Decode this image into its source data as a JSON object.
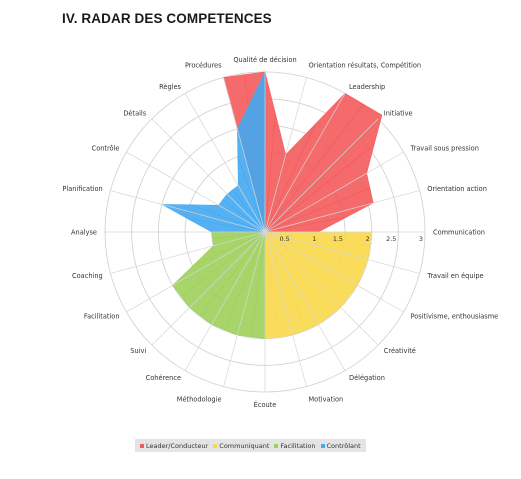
{
  "page": {
    "title": "IV. RADAR DES COMPETENCES"
  },
  "chart_data": {
    "type": "radar",
    "title": "",
    "categories": [
      "Qualité de décision",
      "Orientation résultats, Compétition",
      "Leadership",
      "Initiative",
      "Travail sous pression",
      "Orientation action",
      "Communication",
      "Travail en équipe",
      "Positivisme, enthousiasme",
      "Créativité",
      "Délégation",
      "Motivation",
      "Écoute",
      "Méthodologie",
      "Cohérence",
      "Suivi",
      "Facilitation",
      "Coaching",
      "Analyse",
      "Planification",
      "Contrôle",
      "Détails",
      "Règles",
      "Procédures"
    ],
    "radial_range": [
      0,
      3
    ],
    "ticks": [
      "0.5",
      "1",
      "1.5",
      "2",
      "2.5",
      "3"
    ],
    "tick_values": [
      0.5,
      1,
      1.5,
      2,
      2.5,
      3
    ],
    "grid": true,
    "legend_position": "bottom",
    "series": [
      {
        "name": "Leader/Conducteur",
        "color": "#f45b5b",
        "values": [
          3,
          1.5,
          3,
          3.1,
          2.2,
          2.1,
          1,
          0,
          0,
          0,
          0,
          0,
          0,
          0,
          0,
          0,
          0,
          0,
          0,
          0,
          0,
          0,
          0,
          3
        ]
      },
      {
        "name": "Communiquant",
        "color": "#f9d84a",
        "values": [
          0,
          0,
          0,
          0,
          0,
          0,
          2,
          2,
          2,
          2,
          2,
          2,
          2,
          0,
          0,
          0,
          0,
          0,
          0,
          0,
          0,
          0,
          0,
          0
        ]
      },
      {
        "name": "Facilitation",
        "color": "#9ed05a",
        "values": [
          0,
          0,
          0,
          0,
          0,
          0,
          0,
          0,
          0,
          0,
          0,
          0,
          2,
          2,
          2,
          2,
          2,
          1,
          1,
          0,
          0,
          0,
          0,
          0
        ]
      },
      {
        "name": "Contrôlant",
        "color": "#44a9f1",
        "values": [
          3,
          0,
          0,
          0,
          0,
          0,
          0,
          0,
          0,
          0,
          0,
          0,
          0,
          0,
          0,
          0,
          0,
          0,
          1,
          2,
          1,
          1,
          1,
          2
        ]
      }
    ]
  }
}
